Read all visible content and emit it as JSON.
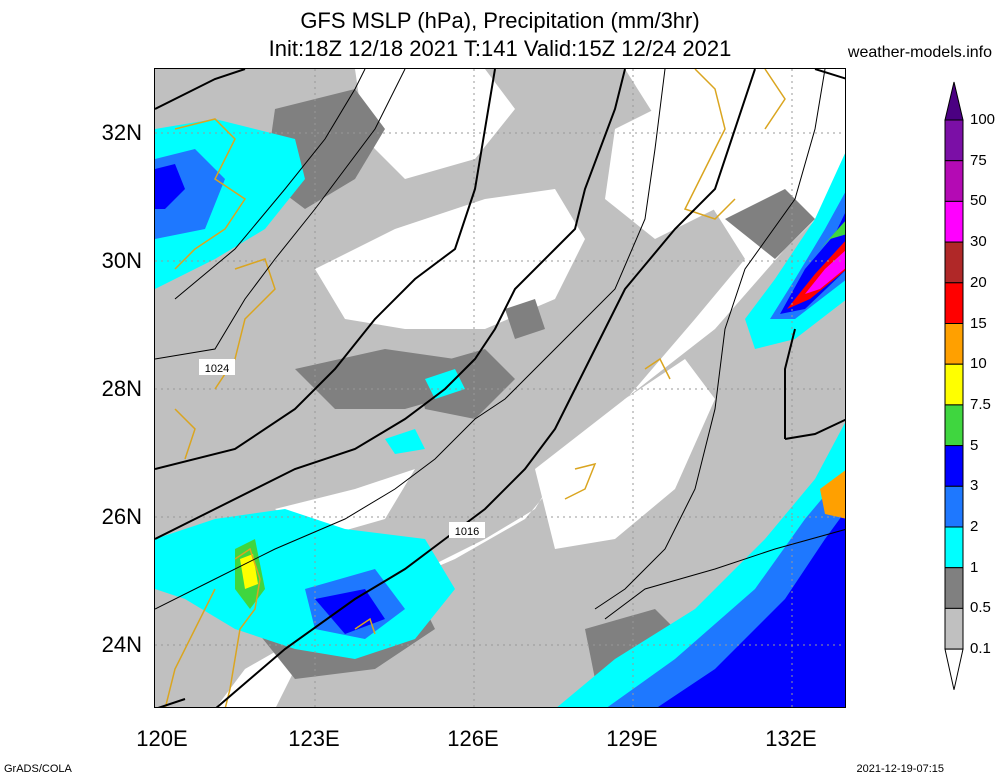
{
  "title": {
    "line1": "GFS MSLP (hPa), Precipitation (mm/3hr)",
    "line2": "Init:18Z 12/18 2021 T:141 Valid:15Z 12/24 2021"
  },
  "site": "weather-models.info",
  "credit_left": "GrADS/COLA",
  "credit_right": "2021-12-19-07:15",
  "map": {
    "lat_labels": [
      "32N",
      "30N",
      "28N",
      "26N",
      "24N"
    ],
    "lat_values": [
      32,
      30,
      28,
      26,
      24
    ],
    "lon_labels": [
      "120E",
      "123E",
      "126E",
      "129E",
      "132E"
    ],
    "lon_values": [
      120,
      123,
      126,
      129,
      132
    ],
    "lon_range": [
      120,
      133
    ],
    "lat_range": [
      23,
      33
    ],
    "isobar_labels": [
      "1024",
      "1016"
    ]
  },
  "colorbar": {
    "labels": [
      "100",
      "75",
      "50",
      "30",
      "20",
      "15",
      "10",
      "7.5",
      "5",
      "3",
      "2",
      "1",
      "0.5",
      "0.1"
    ],
    "colors": [
      "#7b0fa6",
      "#b40ab4",
      "#ff00ff",
      "#b02828",
      "#ff0000",
      "#ffa000",
      "#ffff00",
      "#3fd63f",
      "#0000ff",
      "#1e78ff",
      "#00ffff",
      "#808080",
      "#c0c0c0",
      "#ffffff"
    ],
    "top_color": "#4b0082"
  }
}
